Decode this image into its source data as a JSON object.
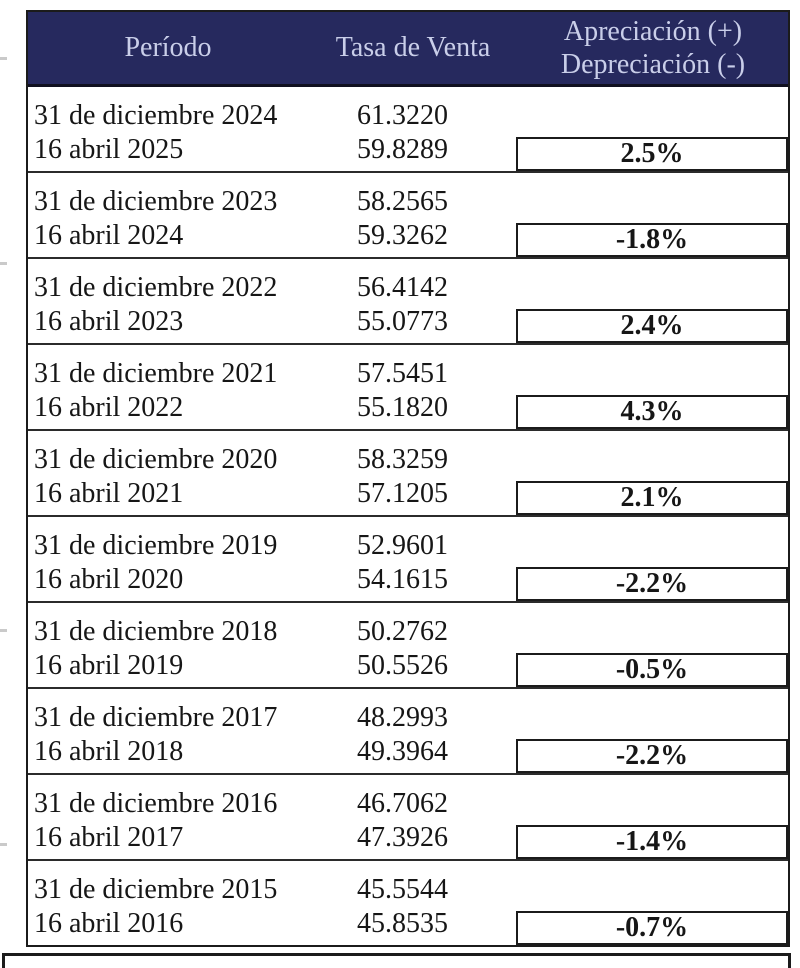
{
  "table": {
    "columns": {
      "period": "Período",
      "rate": "Tasa de Venta",
      "change_line1": "Apreciación (+)",
      "change_line2": "Depreciación (-)"
    },
    "rows": [
      {
        "date1": "31 de diciembre 2024",
        "rate1": "61.3220",
        "date2": "16 abril 2025",
        "rate2": "59.8289",
        "change": "2.5%"
      },
      {
        "date1": "31 de diciembre 2023",
        "rate1": "58.2565",
        "date2": "16 abril 2024",
        "rate2": "59.3262",
        "change": "-1.8%"
      },
      {
        "date1": "31 de diciembre 2022",
        "rate1": "56.4142",
        "date2": "16 abril 2023",
        "rate2": "55.0773",
        "change": "2.4%"
      },
      {
        "date1": "31 de diciembre 2021",
        "rate1": "57.5451",
        "date2": "16 abril 2022",
        "rate2": "55.1820",
        "change": "4.3%"
      },
      {
        "date1": "31 de diciembre 2020",
        "rate1": "58.3259",
        "date2": "16 abril 2021",
        "rate2": "57.1205",
        "change": "2.1%"
      },
      {
        "date1": "31 de diciembre 2019",
        "rate1": "52.9601",
        "date2": "16 abril 2020",
        "rate2": "54.1615",
        "change": "-2.2%"
      },
      {
        "date1": "31 de diciembre 2018",
        "rate1": "50.2762",
        "date2": "16 abril 2019",
        "rate2": "50.5526",
        "change": "-0.5%"
      },
      {
        "date1": "31 de diciembre 2017",
        "rate1": "48.2993",
        "date2": "16 abril 2018",
        "rate2": "49.3964",
        "change": "-2.2%"
      },
      {
        "date1": "31 de diciembre 2016",
        "rate1": "46.7062",
        "date2": "16 abril 2017",
        "rate2": "47.3926",
        "change": "-1.4%"
      },
      {
        "date1": "31 de diciembre 2015",
        "rate1": "45.5544",
        "date2": "16 abril 2016",
        "rate2": "45.8535",
        "change": "-0.7%"
      }
    ]
  },
  "colors": {
    "header_bg": "#26295e",
    "header_text": "#c9cee9",
    "border": "#1b1b1b",
    "body_text": "#161616"
  }
}
